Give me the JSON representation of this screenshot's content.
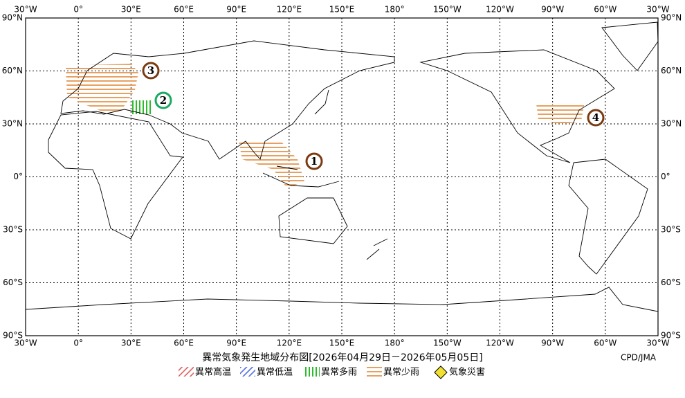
{
  "map": {
    "lon_labels": [
      "30°W",
      "0°",
      "30°E",
      "60°E",
      "90°E",
      "120°E",
      "150°E",
      "180°",
      "150°W",
      "120°W",
      "90°W",
      "60°W",
      "30°W"
    ],
    "lat_labels": [
      "90°N",
      "60°N",
      "30°N",
      "0°",
      "30°S",
      "60°S",
      "90°S"
    ],
    "markers": [
      "1",
      "2",
      "3",
      "4"
    ]
  },
  "title": "異常気象発生地域分布図[2026年04月29日－2026年05月05日]",
  "credit": "CPD/JMA",
  "legend": [
    "異常高温",
    "異常低温",
    "異常多雨",
    "異常少雨",
    "気象災害"
  ]
}
